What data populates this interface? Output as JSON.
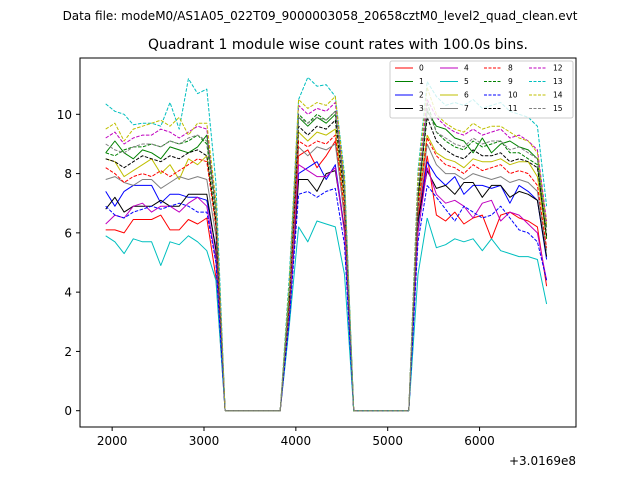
{
  "figure": {
    "suptitle": "Data file: modeM0/AS1A05_022T09_9000003058_20658cztM0_level2_quad_clean.evt",
    "offset_label": "+3.0169e8"
  },
  "chart_data": {
    "type": "line",
    "title": "Quadrant 1 module wise count rates with 100.0s bins.",
    "xlabel": "",
    "ylabel": "",
    "xlim": [
      1650,
      7050
    ],
    "ylim": [
      -0.55,
      11.9
    ],
    "x_offset": 301690000,
    "x_ticks": [
      2000,
      3000,
      4000,
      5000,
      6000
    ],
    "y_ticks": [
      0,
      2,
      4,
      6,
      8,
      10
    ],
    "x_tick_labels": [
      "2000",
      "3000",
      "4000",
      "5000",
      "6000"
    ],
    "y_tick_labels": [
      "0",
      "2",
      "4",
      "6",
      "8",
      "10"
    ],
    "grid": false,
    "legend": {
      "placement": "top-right",
      "columns": 4
    },
    "x": [
      1930,
      2030,
      2130,
      2230,
      2330,
      2430,
      2530,
      2630,
      2730,
      2830,
      2930,
      3030,
      3130,
      3230,
      3830,
      3930,
      4030,
      4130,
      4230,
      4330,
      4430,
      4530,
      4630,
      5230,
      5330,
      5430,
      5530,
      5630,
      5730,
      5830,
      5930,
      6030,
      6130,
      6230,
      6330,
      6430,
      6530,
      6630,
      6730
    ],
    "segments": [
      [
        0,
        13
      ],
      [
        13,
        15
      ],
      [
        15,
        23
      ],
      [
        23,
        25
      ],
      [
        25,
        38
      ]
    ],
    "series": [
      {
        "name": "0",
        "color": "#ff0000",
        "dash": false,
        "values": [
          6.1,
          6.1,
          6.0,
          6.45,
          6.45,
          6.45,
          6.6,
          6.1,
          6.1,
          6.45,
          6.3,
          6.5,
          4.5,
          0.0,
          0.0,
          3.0,
          8.6,
          8.8,
          8.2,
          8.6,
          9.1,
          6.5,
          0.0,
          0.0,
          6.5,
          8.6,
          6.6,
          6.4,
          6.7,
          6.3,
          6.5,
          6.6,
          5.8,
          6.6,
          6.7,
          6.5,
          6.4,
          6.2,
          4.2
        ]
      },
      {
        "name": "1",
        "color": "#008000",
        "dash": false,
        "values": [
          8.7,
          9.1,
          8.7,
          8.5,
          8.8,
          8.7,
          8.5,
          8.9,
          8.8,
          8.7,
          8.9,
          9.3,
          6.8,
          0.0,
          0.0,
          4.1,
          9.9,
          9.6,
          9.9,
          9.7,
          10.0,
          7.6,
          0.0,
          0.0,
          7.2,
          10.1,
          9.6,
          9.5,
          9.2,
          9.1,
          8.7,
          9.2,
          8.7,
          9.0,
          9.1,
          8.9,
          8.8,
          8.5,
          6.2
        ]
      },
      {
        "name": "2",
        "color": "#0000ff",
        "dash": false,
        "values": [
          7.4,
          6.9,
          7.4,
          7.6,
          7.6,
          7.6,
          7.0,
          7.3,
          7.3,
          7.2,
          7.2,
          7.1,
          5.5,
          0.0,
          0.0,
          3.4,
          8.0,
          8.2,
          8.4,
          7.8,
          8.3,
          6.1,
          0.0,
          0.0,
          6.3,
          8.4,
          7.9,
          7.6,
          7.9,
          7.3,
          7.6,
          7.6,
          7.5,
          7.6,
          7.0,
          7.6,
          7.4,
          7.1,
          5.1
        ]
      },
      {
        "name": "3",
        "color": "#000000",
        "dash": false,
        "values": [
          6.8,
          7.2,
          6.7,
          6.9,
          6.9,
          6.9,
          7.1,
          6.9,
          6.9,
          7.3,
          7.3,
          7.3,
          5.4,
          0.0,
          0.0,
          3.3,
          7.8,
          7.8,
          7.4,
          8.0,
          8.1,
          6.1,
          0.0,
          0.0,
          6.4,
          8.1,
          7.5,
          7.6,
          7.3,
          7.7,
          7.7,
          7.2,
          7.6,
          7.6,
          7.2,
          7.4,
          7.3,
          7.1,
          5.2
        ]
      },
      {
        "name": "4",
        "color": "#bf00bf",
        "dash": false,
        "values": [
          6.3,
          6.6,
          6.5,
          6.9,
          7.0,
          6.7,
          6.9,
          6.9,
          6.7,
          7.0,
          7.2,
          6.9,
          5.1,
          0.0,
          0.0,
          3.2,
          8.3,
          8.1,
          7.9,
          7.9,
          8.2,
          6.0,
          0.0,
          0.0,
          6.0,
          8.2,
          7.3,
          7.0,
          7.1,
          6.9,
          6.5,
          7.0,
          7.1,
          6.4,
          6.7,
          6.6,
          6.3,
          6.0,
          4.4
        ]
      },
      {
        "name": "5",
        "color": "#00bfbf",
        "dash": false,
        "values": [
          5.9,
          5.7,
          5.3,
          5.8,
          5.7,
          5.7,
          4.9,
          5.7,
          5.6,
          5.9,
          5.7,
          5.4,
          4.4,
          0.0,
          0.0,
          2.9,
          6.2,
          5.7,
          6.4,
          6.3,
          6.2,
          4.6,
          0.0,
          0.0,
          4.6,
          6.5,
          5.5,
          5.6,
          5.8,
          5.7,
          5.8,
          5.4,
          5.8,
          5.4,
          5.3,
          5.2,
          5.2,
          5.1,
          3.6
        ]
      },
      {
        "name": "6",
        "color": "#bfbf00",
        "dash": false,
        "values": [
          8.5,
          8.4,
          7.9,
          8.1,
          8.3,
          8.5,
          8.0,
          8.3,
          7.8,
          8.5,
          8.3,
          8.6,
          6.3,
          0.0,
          0.0,
          3.7,
          9.4,
          9.1,
          9.4,
          9.3,
          9.5,
          7.0,
          0.0,
          0.0,
          7.1,
          9.3,
          8.7,
          8.5,
          8.4,
          8.2,
          8.5,
          8.4,
          8.4,
          8.5,
          8.3,
          8.4,
          8.4,
          7.9,
          5.8
        ]
      },
      {
        "name": "7",
        "color": "#808080",
        "dash": false,
        "values": [
          7.8,
          7.9,
          7.7,
          7.6,
          7.8,
          7.8,
          7.5,
          7.7,
          7.9,
          7.8,
          7.9,
          7.8,
          5.9,
          0.0,
          0.0,
          3.5,
          8.9,
          8.6,
          8.9,
          8.8,
          9.0,
          6.6,
          0.0,
          0.0,
          6.7,
          9.0,
          8.3,
          8.0,
          8.0,
          7.8,
          8.0,
          7.9,
          7.8,
          7.9,
          7.7,
          7.8,
          7.7,
          7.4,
          5.4
        ]
      },
      {
        "name": "8",
        "color": "#ff0000",
        "dash": true,
        "values": [
          8.2,
          8.0,
          7.7,
          7.9,
          8.0,
          7.9,
          8.1,
          7.9,
          8.1,
          8.3,
          8.5,
          8.4,
          6.2,
          0.0,
          0.0,
          3.6,
          9.1,
          8.9,
          9.1,
          9.0,
          9.3,
          6.8,
          0.0,
          0.0,
          6.9,
          9.2,
          8.6,
          8.3,
          8.2,
          8.0,
          8.3,
          8.1,
          8.2,
          8.3,
          8.0,
          8.1,
          8.0,
          7.6,
          5.5
        ]
      },
      {
        "name": "9",
        "color": "#008000",
        "dash": true,
        "values": [
          8.7,
          8.6,
          8.8,
          8.9,
          8.9,
          9.0,
          8.9,
          9.1,
          9.0,
          9.1,
          9.3,
          9.0,
          6.7,
          0.0,
          0.0,
          4.0,
          10.0,
          9.7,
          10.0,
          9.8,
          10.1,
          7.5,
          0.0,
          0.0,
          7.5,
          10.4,
          9.4,
          9.1,
          8.9,
          8.8,
          9.1,
          8.9,
          9.0,
          9.1,
          8.7,
          8.7,
          8.5,
          8.3,
          5.8
        ]
      },
      {
        "name": "10",
        "color": "#0000ff",
        "dash": true,
        "values": [
          6.9,
          6.6,
          6.5,
          6.7,
          6.8,
          6.9,
          6.8,
          6.9,
          7.0,
          6.9,
          6.7,
          6.7,
          5.0,
          0.0,
          0.0,
          3.1,
          7.3,
          7.4,
          7.2,
          7.4,
          7.5,
          5.6,
          0.0,
          0.0,
          5.7,
          7.6,
          7.2,
          6.8,
          6.4,
          6.9,
          6.7,
          6.5,
          6.6,
          6.9,
          6.5,
          6.1,
          6.0,
          5.7,
          4.4
        ]
      },
      {
        "name": "11",
        "color": "#000000",
        "dash": true,
        "values": [
          8.5,
          8.4,
          8.2,
          8.4,
          8.6,
          8.5,
          8.4,
          8.6,
          8.5,
          8.7,
          8.8,
          8.6,
          6.4,
          0.0,
          0.0,
          3.8,
          9.6,
          9.3,
          9.6,
          9.5,
          9.8,
          7.2,
          0.0,
          0.0,
          7.2,
          9.9,
          9.1,
          8.8,
          8.6,
          8.5,
          8.8,
          8.6,
          8.6,
          8.7,
          8.4,
          8.5,
          8.4,
          8.2,
          5.9
        ]
      },
      {
        "name": "12",
        "color": "#bf00bf",
        "dash": true,
        "values": [
          9.2,
          9.4,
          9.0,
          9.2,
          9.3,
          9.3,
          9.5,
          9.4,
          9.2,
          9.4,
          9.6,
          9.5,
          7.0,
          0.0,
          0.0,
          4.2,
          10.3,
          10.0,
          10.2,
          10.1,
          10.4,
          7.7,
          0.0,
          0.0,
          7.8,
          10.5,
          9.9,
          9.6,
          9.4,
          9.3,
          9.5,
          9.3,
          9.4,
          9.5,
          9.2,
          9.3,
          9.1,
          8.8,
          6.4
        ]
      },
      {
        "name": "13",
        "color": "#00bfbf",
        "dash": true,
        "values": [
          10.35,
          10.1,
          10.0,
          9.65,
          9.7,
          9.7,
          9.6,
          10.4,
          9.5,
          11.2,
          10.7,
          10.85,
          7.7,
          0.0,
          0.0,
          4.6,
          10.5,
          11.25,
          10.95,
          11.0,
          10.6,
          8.0,
          0.0,
          0.0,
          8.1,
          11.1,
          10.6,
          10.3,
          10.4,
          10.3,
          10.5,
          10.2,
          10.3,
          10.4,
          10.1,
          10.0,
          9.9,
          9.6,
          6.9
        ]
      },
      {
        "name": "14",
        "color": "#bfbf00",
        "dash": true,
        "values": [
          9.5,
          9.7,
          9.1,
          9.5,
          9.6,
          9.7,
          9.8,
          9.6,
          9.9,
          9.3,
          9.7,
          9.7,
          7.1,
          0.0,
          0.0,
          4.3,
          10.5,
          10.2,
          10.4,
          10.3,
          10.6,
          7.8,
          0.0,
          0.0,
          7.9,
          10.9,
          10.0,
          9.7,
          9.5,
          9.4,
          9.7,
          9.5,
          9.6,
          9.6,
          9.4,
          9.2,
          9.1,
          8.7,
          6.3
        ]
      },
      {
        "name": "15",
        "color": "#808080",
        "dash": true,
        "values": [
          9.0,
          8.8,
          8.7,
          8.9,
          9.0,
          9.0,
          8.9,
          9.1,
          9.0,
          9.2,
          9.3,
          9.1,
          6.8,
          0.0,
          0.0,
          4.0,
          9.9,
          9.7,
          9.9,
          9.8,
          10.1,
          7.4,
          0.0,
          0.0,
          7.5,
          10.2,
          9.4,
          9.2,
          9.0,
          8.9,
          9.2,
          9.0,
          9.1,
          9.1,
          8.8,
          8.9,
          8.7,
          8.5,
          6.1
        ]
      }
    ]
  }
}
